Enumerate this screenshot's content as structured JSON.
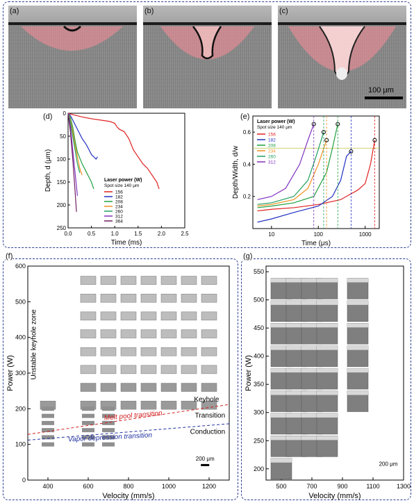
{
  "panel_labels": {
    "a": "(a)",
    "b": "(b)",
    "c": "(c)",
    "d": "(d)",
    "e": "(e)",
    "f": "(f)",
    "g": "(g)"
  },
  "micro_scale": "100 μm",
  "chart_data": [
    {
      "panel": "(d)",
      "type": "line",
      "xlabel": "Time (ms)",
      "ylabel": "Depth, d (μm)",
      "xlim": [
        0,
        2.5
      ],
      "ylim": [
        250,
        0
      ],
      "xticks": [
        "0.0",
        "0.5",
        "1.0",
        "1.5",
        "2.0",
        "2.5"
      ],
      "yticks": [
        "0",
        "50",
        "100",
        "150",
        "200",
        "250"
      ],
      "legend_title": "Laser power (W)",
      "legend_sub": "Spot size 140 μm",
      "legend_labels": [
        "156",
        "182",
        "208",
        "234",
        "260",
        "312",
        "364"
      ],
      "series": [
        {
          "name": "156",
          "color": "#e02020",
          "x": [
            0,
            0.1,
            0.3,
            0.5,
            0.7,
            0.9,
            0.95,
            1.0,
            1.05,
            1.1,
            1.2,
            1.3,
            1.4,
            1.5,
            1.6,
            1.7,
            1.8,
            1.9,
            1.95
          ],
          "y": [
            0,
            3,
            8,
            12,
            15,
            18,
            20,
            22,
            30,
            35,
            40,
            55,
            80,
            95,
            110,
            120,
            135,
            150,
            165
          ]
        },
        {
          "name": "182",
          "color": "#2030c0",
          "x": [
            0,
            0.05,
            0.1,
            0.15,
            0.2,
            0.3,
            0.4,
            0.5,
            0.6,
            0.63
          ],
          "y": [
            0,
            5,
            15,
            25,
            35,
            55,
            70,
            90,
            100,
            95
          ]
        },
        {
          "name": "208",
          "color": "#20a040",
          "x": [
            0,
            0.05,
            0.1,
            0.15,
            0.2,
            0.3,
            0.4,
            0.5,
            0.55
          ],
          "y": [
            0,
            10,
            30,
            60,
            85,
            110,
            130,
            150,
            165
          ]
        },
        {
          "name": "234",
          "color": "#f09020",
          "x": [
            0,
            0.05,
            0.1,
            0.15,
            0.2,
            0.25,
            0.3
          ],
          "y": [
            0,
            15,
            40,
            70,
            95,
            120,
            135
          ]
        },
        {
          "name": "260",
          "color": "#20a060",
          "x": [
            0,
            0.05,
            0.1,
            0.15,
            0.2,
            0.25
          ],
          "y": [
            0,
            20,
            50,
            80,
            110,
            130
          ]
        },
        {
          "name": "312",
          "color": "#8030c0",
          "x": [
            0,
            0.05,
            0.1,
            0.15,
            0.2
          ],
          "y": [
            0,
            30,
            80,
            130,
            180
          ]
        },
        {
          "name": "364",
          "color": "#702060",
          "x": [
            0,
            0.05,
            0.1,
            0.15,
            0.18
          ],
          "y": [
            0,
            40,
            100,
            170,
            215
          ]
        }
      ]
    },
    {
      "panel": "(e)",
      "type": "line",
      "xlabel": "Time (μs)",
      "ylabel": "Depth/Width, d/w",
      "xscale": "log",
      "xlim": [
        4,
        2000
      ],
      "ylim": [
        0,
        0.7
      ],
      "xticks": [
        "10",
        "100",
        "1000"
      ],
      "yticks": [
        "0.2",
        "0.4",
        "0.6"
      ],
      "hline": 0.5,
      "legend_title": "Laser power (W)",
      "legend_sub": "Spot size 140 μm",
      "legend_labels": [
        "156",
        "182",
        "208",
        "234",
        "260",
        "312"
      ],
      "series": [
        {
          "name": "156",
          "color": "#e02020",
          "x": [
            5,
            10,
            30,
            100,
            300,
            700,
            1000,
            1300,
            1600
          ],
          "y": [
            0.11,
            0.12,
            0.13,
            0.15,
            0.18,
            0.24,
            0.28,
            0.4,
            0.55
          ]
        },
        {
          "name": "182",
          "color": "#2030c0",
          "x": [
            5,
            10,
            30,
            100,
            200,
            300,
            400,
            500
          ],
          "y": [
            0.04,
            0.06,
            0.1,
            0.14,
            0.2,
            0.3,
            0.45,
            0.48
          ]
        },
        {
          "name": "208",
          "color": "#20a040",
          "x": [
            5,
            10,
            30,
            80,
            150,
            200,
            260
          ],
          "y": [
            0.13,
            0.14,
            0.16,
            0.2,
            0.35,
            0.5,
            0.65
          ]
        },
        {
          "name": "234",
          "color": "#f09020",
          "x": [
            5,
            10,
            30,
            60,
            100,
            150
          ],
          "y": [
            0.14,
            0.15,
            0.18,
            0.25,
            0.4,
            0.55
          ]
        },
        {
          "name": "260",
          "color": "#20a060",
          "x": [
            5,
            10,
            30,
            60,
            90,
            130
          ],
          "y": [
            0.15,
            0.16,
            0.2,
            0.3,
            0.45,
            0.6
          ]
        },
        {
          "name": "312",
          "color": "#8030c0",
          "x": [
            5,
            10,
            20,
            40,
            60,
            80
          ],
          "y": [
            0.18,
            0.2,
            0.25,
            0.4,
            0.55,
            0.65
          ]
        }
      ]
    },
    {
      "panel": "(f)",
      "type": "scatter",
      "xlabel": "Velocity (mm/s)",
      "ylabel": "Power (W)",
      "xlim": [
        300,
        1300
      ],
      "ylim": [
        0,
        600
      ],
      "xticks": [
        "400",
        "600",
        "800",
        "1000",
        "1200"
      ],
      "yticks": [
        "0",
        "100",
        "200",
        "300",
        "400",
        "500",
        "600"
      ],
      "annotations": {
        "unstable": "Unstable keyhole zone",
        "keyhole": "Keyhole",
        "transition": "Transition",
        "conduction": "Conduction",
        "melt_pool": "Melt pool transition",
        "vapor": "Vapor depression transition",
        "scale": "200 μm"
      },
      "melt_pool_line": {
        "x": [
          300,
          1300
        ],
        "y": [
          128,
          212
        ]
      },
      "vapor_line": {
        "x": [
          300,
          1300
        ],
        "y": [
          112,
          158
        ]
      }
    },
    {
      "panel": "(g)",
      "type": "scatter",
      "xlabel": "Velocity (mm/s)",
      "ylabel": "Power (W)",
      "xlim": [
        400,
        1300
      ],
      "ylim": [
        180,
        560
      ],
      "xticks": [
        "500",
        "700",
        "900",
        "1100",
        "1300"
      ],
      "yticks": [
        "200",
        "250",
        "300",
        "350",
        "400",
        "450",
        "500",
        "550"
      ],
      "scale": "200 μm"
    }
  ]
}
